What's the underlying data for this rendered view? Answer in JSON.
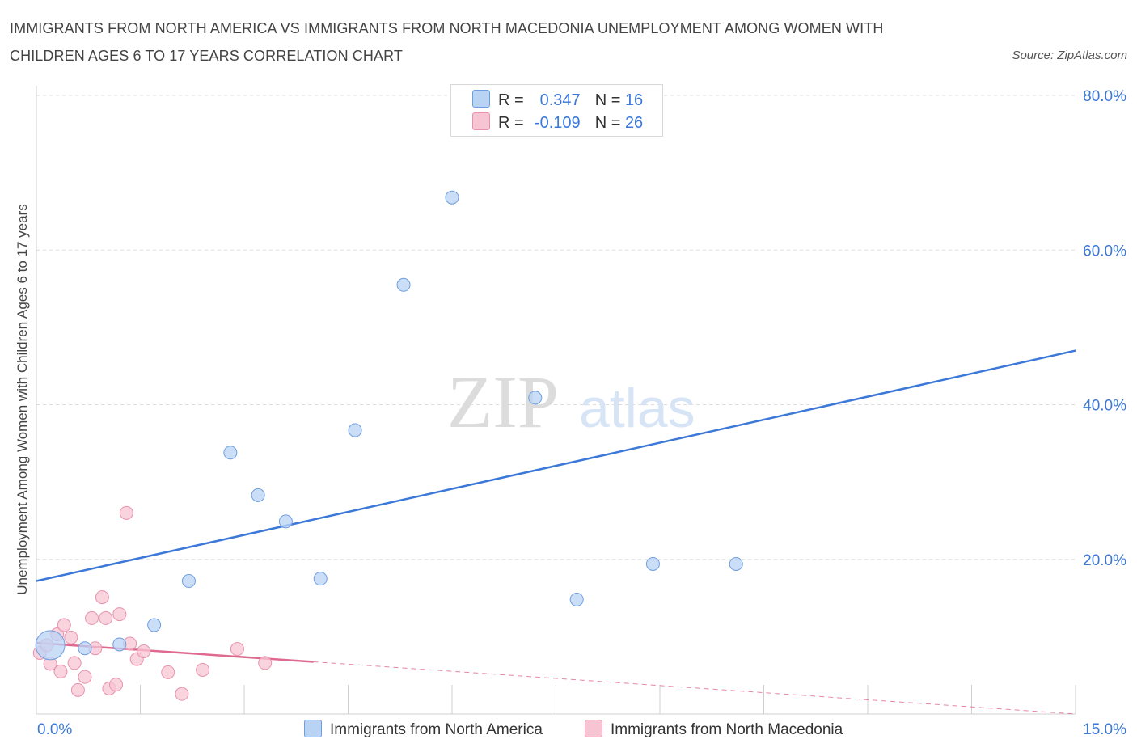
{
  "chart_data": {
    "type": "scatter",
    "title_line1": "IMMIGRANTS FROM NORTH AMERICA VS IMMIGRANTS FROM NORTH MACEDONIA UNEMPLOYMENT AMONG WOMEN WITH",
    "title_line2": "CHILDREN AGES 6 TO 17 YEARS CORRELATION CHART",
    "source": "Source: ZipAtlas.com",
    "ylabel": "Unemployment Among Women with Children Ages 6 to 17 years",
    "xlim": [
      0,
      15
    ],
    "ylim": [
      0,
      80
    ],
    "x_tick_labels": [
      "0.0%",
      "15.0%"
    ],
    "y_ticks": [
      20,
      40,
      60,
      80
    ],
    "y_tick_labels": [
      "20.0%",
      "40.0%",
      "60.0%",
      "80.0%"
    ],
    "grid": true,
    "legend_placement": "top-center",
    "watermark": {
      "zip": "ZIP",
      "atlas": "atlas"
    },
    "legend": [
      {
        "r_label": "R =",
        "r_value": "0.347",
        "n_label": "N =",
        "n_value": "16"
      },
      {
        "r_label": "R =",
        "r_value": "-0.109",
        "n_label": "N =",
        "n_value": "26"
      }
    ],
    "series": [
      {
        "name": "Immigrants from North America",
        "color": "#3b78d8",
        "fill": "#b9d3f5",
        "trend": {
          "x": [
            0,
            15
          ],
          "y": [
            17.2,
            47.0
          ],
          "dashed_from": null
        },
        "points": [
          {
            "x": 0.2,
            "y": 8.9,
            "big": true
          },
          {
            "x": 0.7,
            "y": 8.5
          },
          {
            "x": 1.2,
            "y": 9.0
          },
          {
            "x": 1.7,
            "y": 11.5
          },
          {
            "x": 2.2,
            "y": 17.2
          },
          {
            "x": 2.8,
            "y": 33.8
          },
          {
            "x": 3.2,
            "y": 28.3
          },
          {
            "x": 3.6,
            "y": 24.9
          },
          {
            "x": 4.1,
            "y": 17.5
          },
          {
            "x": 4.6,
            "y": 36.7
          },
          {
            "x": 5.3,
            "y": 55.5
          },
          {
            "x": 6.0,
            "y": 66.8
          },
          {
            "x": 7.2,
            "y": 40.9
          },
          {
            "x": 7.8,
            "y": 14.8
          },
          {
            "x": 8.9,
            "y": 19.4
          },
          {
            "x": 10.1,
            "y": 19.4
          }
        ]
      },
      {
        "name": "Immigrants from North Macedonia",
        "color": "#e0698f",
        "fill": "#f7c4d3",
        "trend": {
          "x": [
            0,
            15
          ],
          "y": [
            9.2,
            0.0
          ],
          "solid_until": 4.0
        },
        "points": [
          {
            "x": 0.05,
            "y": 7.9
          },
          {
            "x": 0.15,
            "y": 8.9
          },
          {
            "x": 0.2,
            "y": 6.5
          },
          {
            "x": 0.3,
            "y": 10.3
          },
          {
            "x": 0.35,
            "y": 5.5
          },
          {
            "x": 0.4,
            "y": 11.5
          },
          {
            "x": 0.5,
            "y": 9.9
          },
          {
            "x": 0.55,
            "y": 6.6
          },
          {
            "x": 0.6,
            "y": 3.1
          },
          {
            "x": 0.7,
            "y": 4.8
          },
          {
            "x": 0.8,
            "y": 12.4
          },
          {
            "x": 0.85,
            "y": 8.5
          },
          {
            "x": 0.95,
            "y": 15.1
          },
          {
            "x": 1.0,
            "y": 12.4
          },
          {
            "x": 1.05,
            "y": 3.3
          },
          {
            "x": 1.15,
            "y": 3.8
          },
          {
            "x": 1.2,
            "y": 12.9
          },
          {
            "x": 1.3,
            "y": 26.0
          },
          {
            "x": 1.35,
            "y": 9.1
          },
          {
            "x": 1.45,
            "y": 7.1
          },
          {
            "x": 1.55,
            "y": 8.1
          },
          {
            "x": 1.9,
            "y": 5.4
          },
          {
            "x": 2.1,
            "y": 2.6
          },
          {
            "x": 2.4,
            "y": 5.7
          },
          {
            "x": 2.9,
            "y": 8.4
          },
          {
            "x": 3.3,
            "y": 6.6
          }
        ]
      }
    ]
  }
}
